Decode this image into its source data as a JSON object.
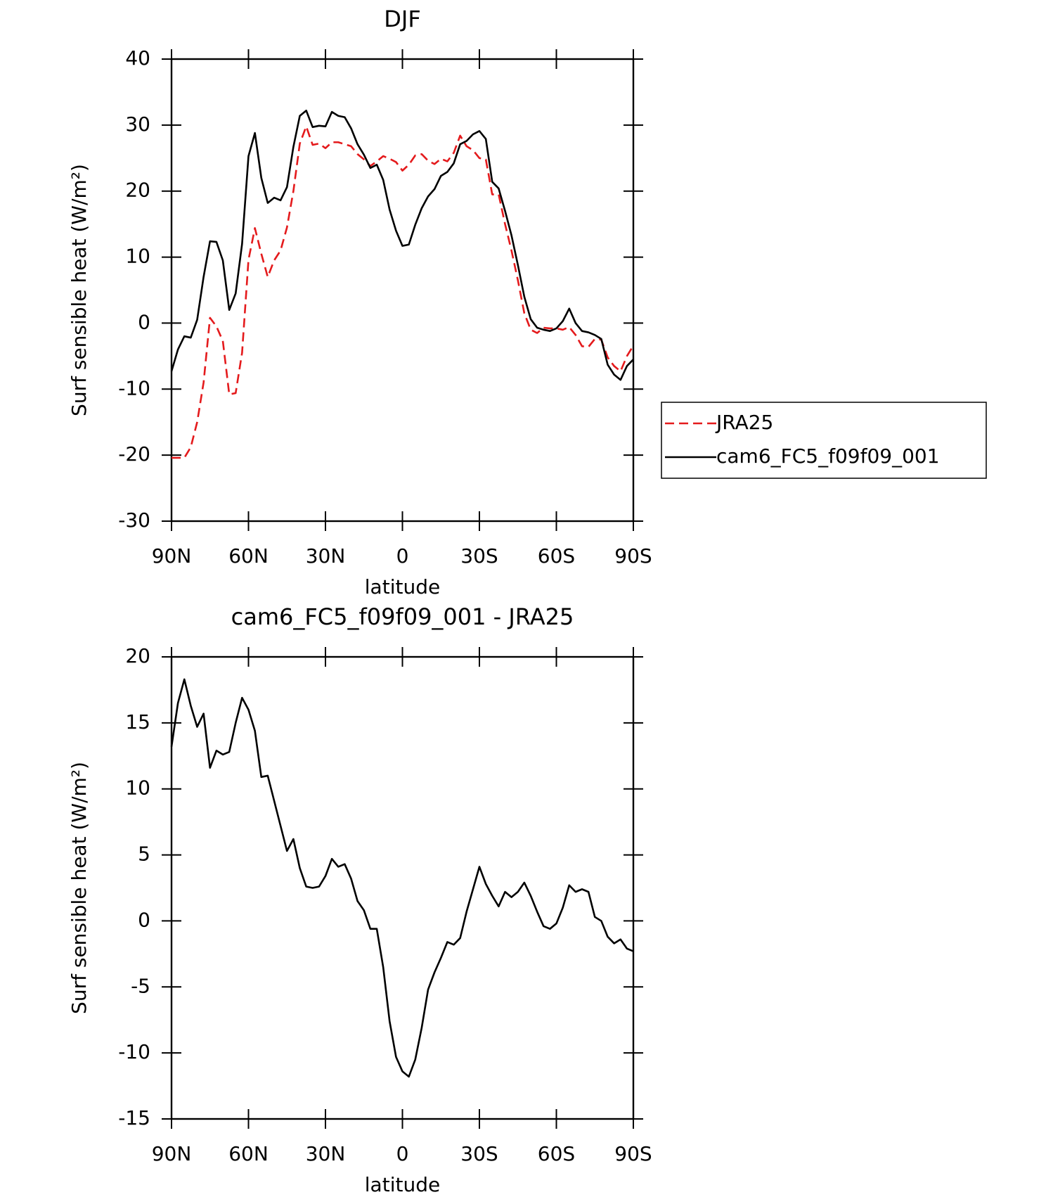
{
  "chart_data": [
    {
      "type": "line",
      "title": "DJF",
      "xlabel": "latitude",
      "ylabel": "Surf sensible heat (W/m²)",
      "x": [
        90,
        87.5,
        85,
        82.5,
        80,
        77.5,
        75,
        72.5,
        70,
        67.5,
        65,
        62.5,
        60,
        57.5,
        55,
        52.5,
        50,
        47.5,
        45,
        42.5,
        40,
        37.5,
        35,
        32.5,
        30,
        27.5,
        25,
        22.5,
        20,
        17.5,
        15,
        12.5,
        10,
        7.5,
        5,
        2.5,
        0,
        -2.5,
        -5,
        -7.5,
        -10,
        -12.5,
        -15,
        -17.5,
        -20,
        -22.5,
        -25,
        -27.5,
        -30,
        -32.5,
        -35,
        -37.5,
        -40,
        -42.5,
        -45,
        -47.5,
        -50,
        -52.5,
        -55,
        -57.5,
        -60,
        -62.5,
        -65,
        -67.5,
        -70,
        -72.5,
        -75,
        -77.5,
        -80,
        -82.5,
        -85,
        -87.5,
        -90
      ],
      "series": [
        {
          "name": "JRA25",
          "color": "#e41a1c",
          "dash": true,
          "values": [
            -20.4,
            -20.4,
            -20.4,
            -18.8,
            -15,
            -9,
            0.8,
            -0.5,
            -2.7,
            -10.8,
            -10.6,
            -4.5,
            9.6,
            14.4,
            10.5,
            7,
            9.5,
            11,
            14.5,
            20,
            27.2,
            29.8,
            27,
            27.2,
            26.5,
            27.4,
            27.4,
            27.1,
            26.8,
            25.6,
            24.8,
            23.8,
            24.5,
            25.3,
            24.9,
            24.4,
            23.1,
            24,
            25.4,
            25.6,
            24.6,
            24.1,
            24.9,
            24.5,
            25.8,
            28.4,
            26.8,
            26.2,
            25,
            24.8,
            19.5,
            19.5,
            15,
            11,
            6.5,
            1.5,
            -1,
            -1.5,
            -0.7,
            -0.8,
            -0.8,
            -1,
            -0.6,
            -1.8,
            -3.5,
            -3.6,
            -2.4,
            -2.5,
            -5.2,
            -6.5,
            -7.3,
            -5,
            -3.4
          ]
        },
        {
          "name": "cam6_FC5_f09f09_001",
          "color": "#000000",
          "dash": false,
          "values": [
            -7.3,
            -4,
            -2,
            -2.2,
            0.5,
            7,
            12.4,
            12.3,
            9.5,
            2,
            4.5,
            12,
            25.3,
            28.8,
            22,
            18.2,
            19,
            18.6,
            20.6,
            26.7,
            31.4,
            32.2,
            29.7,
            29.9,
            29.8,
            32,
            31.4,
            31.2,
            29.5,
            27.1,
            25.5,
            23.5,
            24,
            21.7,
            17.2,
            14,
            11.7,
            11.9,
            14.9,
            17.4,
            19.2,
            20.3,
            22.3,
            22.9,
            24.2,
            27.1,
            27.6,
            28.6,
            29.1,
            27.9,
            21.4,
            20.4,
            17,
            13.3,
            8.8,
            4,
            0.6,
            -0.7,
            -1,
            -1.2,
            -0.8,
            0.3,
            2.2,
            0,
            -1.2,
            -1.4,
            -1.8,
            -2.4,
            -6.3,
            -7.8,
            -8.6,
            -6.5,
            -5.5
          ]
        }
      ],
      "xlim": [
        90,
        -90
      ],
      "xticks": [
        {
          "value": 90,
          "label": "90N"
        },
        {
          "value": 60,
          "label": "60N"
        },
        {
          "value": 30,
          "label": "30N"
        },
        0,
        {
          "value": -30,
          "label": "30S"
        },
        {
          "value": -60,
          "label": "60S"
        },
        {
          "value": -90,
          "label": "90S"
        }
      ],
      "ylim": [
        -30,
        40
      ],
      "yticks": [
        -30,
        -20,
        -10,
        0,
        10,
        20,
        30,
        40
      ],
      "legend": "right"
    },
    {
      "type": "line",
      "title": "cam6_FC5_f09f09_001 - JRA25",
      "xlabel": "latitude",
      "ylabel": "Surf sensible heat (W/m²)",
      "x": [
        90,
        87.5,
        85,
        82.5,
        80,
        77.5,
        75,
        72.5,
        70,
        67.5,
        65,
        62.5,
        60,
        57.5,
        55,
        52.5,
        50,
        47.5,
        45,
        42.5,
        40,
        37.5,
        35,
        32.5,
        30,
        27.5,
        25,
        22.5,
        20,
        17.5,
        15,
        12.5,
        10,
        7.5,
        5,
        2.5,
        0,
        -2.5,
        -5,
        -7.5,
        -10,
        -12.5,
        -15,
        -17.5,
        -20,
        -22.5,
        -25,
        -27.5,
        -30,
        -32.5,
        -35,
        -37.5,
        -40,
        -42.5,
        -45,
        -47.5,
        -50,
        -52.5,
        -55,
        -57.5,
        -60,
        -62.5,
        -65,
        -67.5,
        -70,
        -72.5,
        -75,
        -77.5,
        -80,
        -82.5,
        -85,
        -87.5,
        -90
      ],
      "series": [
        {
          "color": "#000000",
          "dash": false,
          "values": [
            13.2,
            16.5,
            18.3,
            16.3,
            14.7,
            15.7,
            11.6,
            12.9,
            12.6,
            12.8,
            15,
            16.9,
            16,
            14.4,
            10.9,
            11,
            9.1,
            7.2,
            5.3,
            6.2,
            4,
            2.6,
            2.5,
            2.6,
            3.4,
            4.7,
            4.1,
            4.3,
            3.2,
            1.5,
            0.8,
            -0.6,
            -0.6,
            -3.5,
            -7.6,
            -10.3,
            -11.4,
            -11.8,
            -10.5,
            -8.1,
            -5.2,
            -3.9,
            -2.8,
            -1.6,
            -1.8,
            -1.3,
            0.7,
            2.4,
            4.1,
            2.8,
            1.9,
            1.1,
            2.2,
            1.8,
            2.2,
            2.9,
            1.9,
            0.7,
            -0.4,
            -0.6,
            -0.2,
            1,
            2.7,
            2.2,
            2.4,
            2.2,
            0.3,
            0,
            -1.2,
            -1.7,
            -1.4,
            -2.1,
            -2.3
          ]
        }
      ],
      "xlim": [
        90,
        -90
      ],
      "xticks": [
        {
          "value": 90,
          "label": "90N"
        },
        {
          "value": 60,
          "label": "60N"
        },
        {
          "value": 30,
          "label": "30N"
        },
        0,
        {
          "value": -30,
          "label": "30S"
        },
        {
          "value": -60,
          "label": "60S"
        },
        {
          "value": -90,
          "label": "90S"
        }
      ],
      "ylim": [
        -15,
        20
      ],
      "yticks": [
        -15,
        -10,
        -5,
        0,
        5,
        10,
        15,
        20
      ]
    }
  ]
}
